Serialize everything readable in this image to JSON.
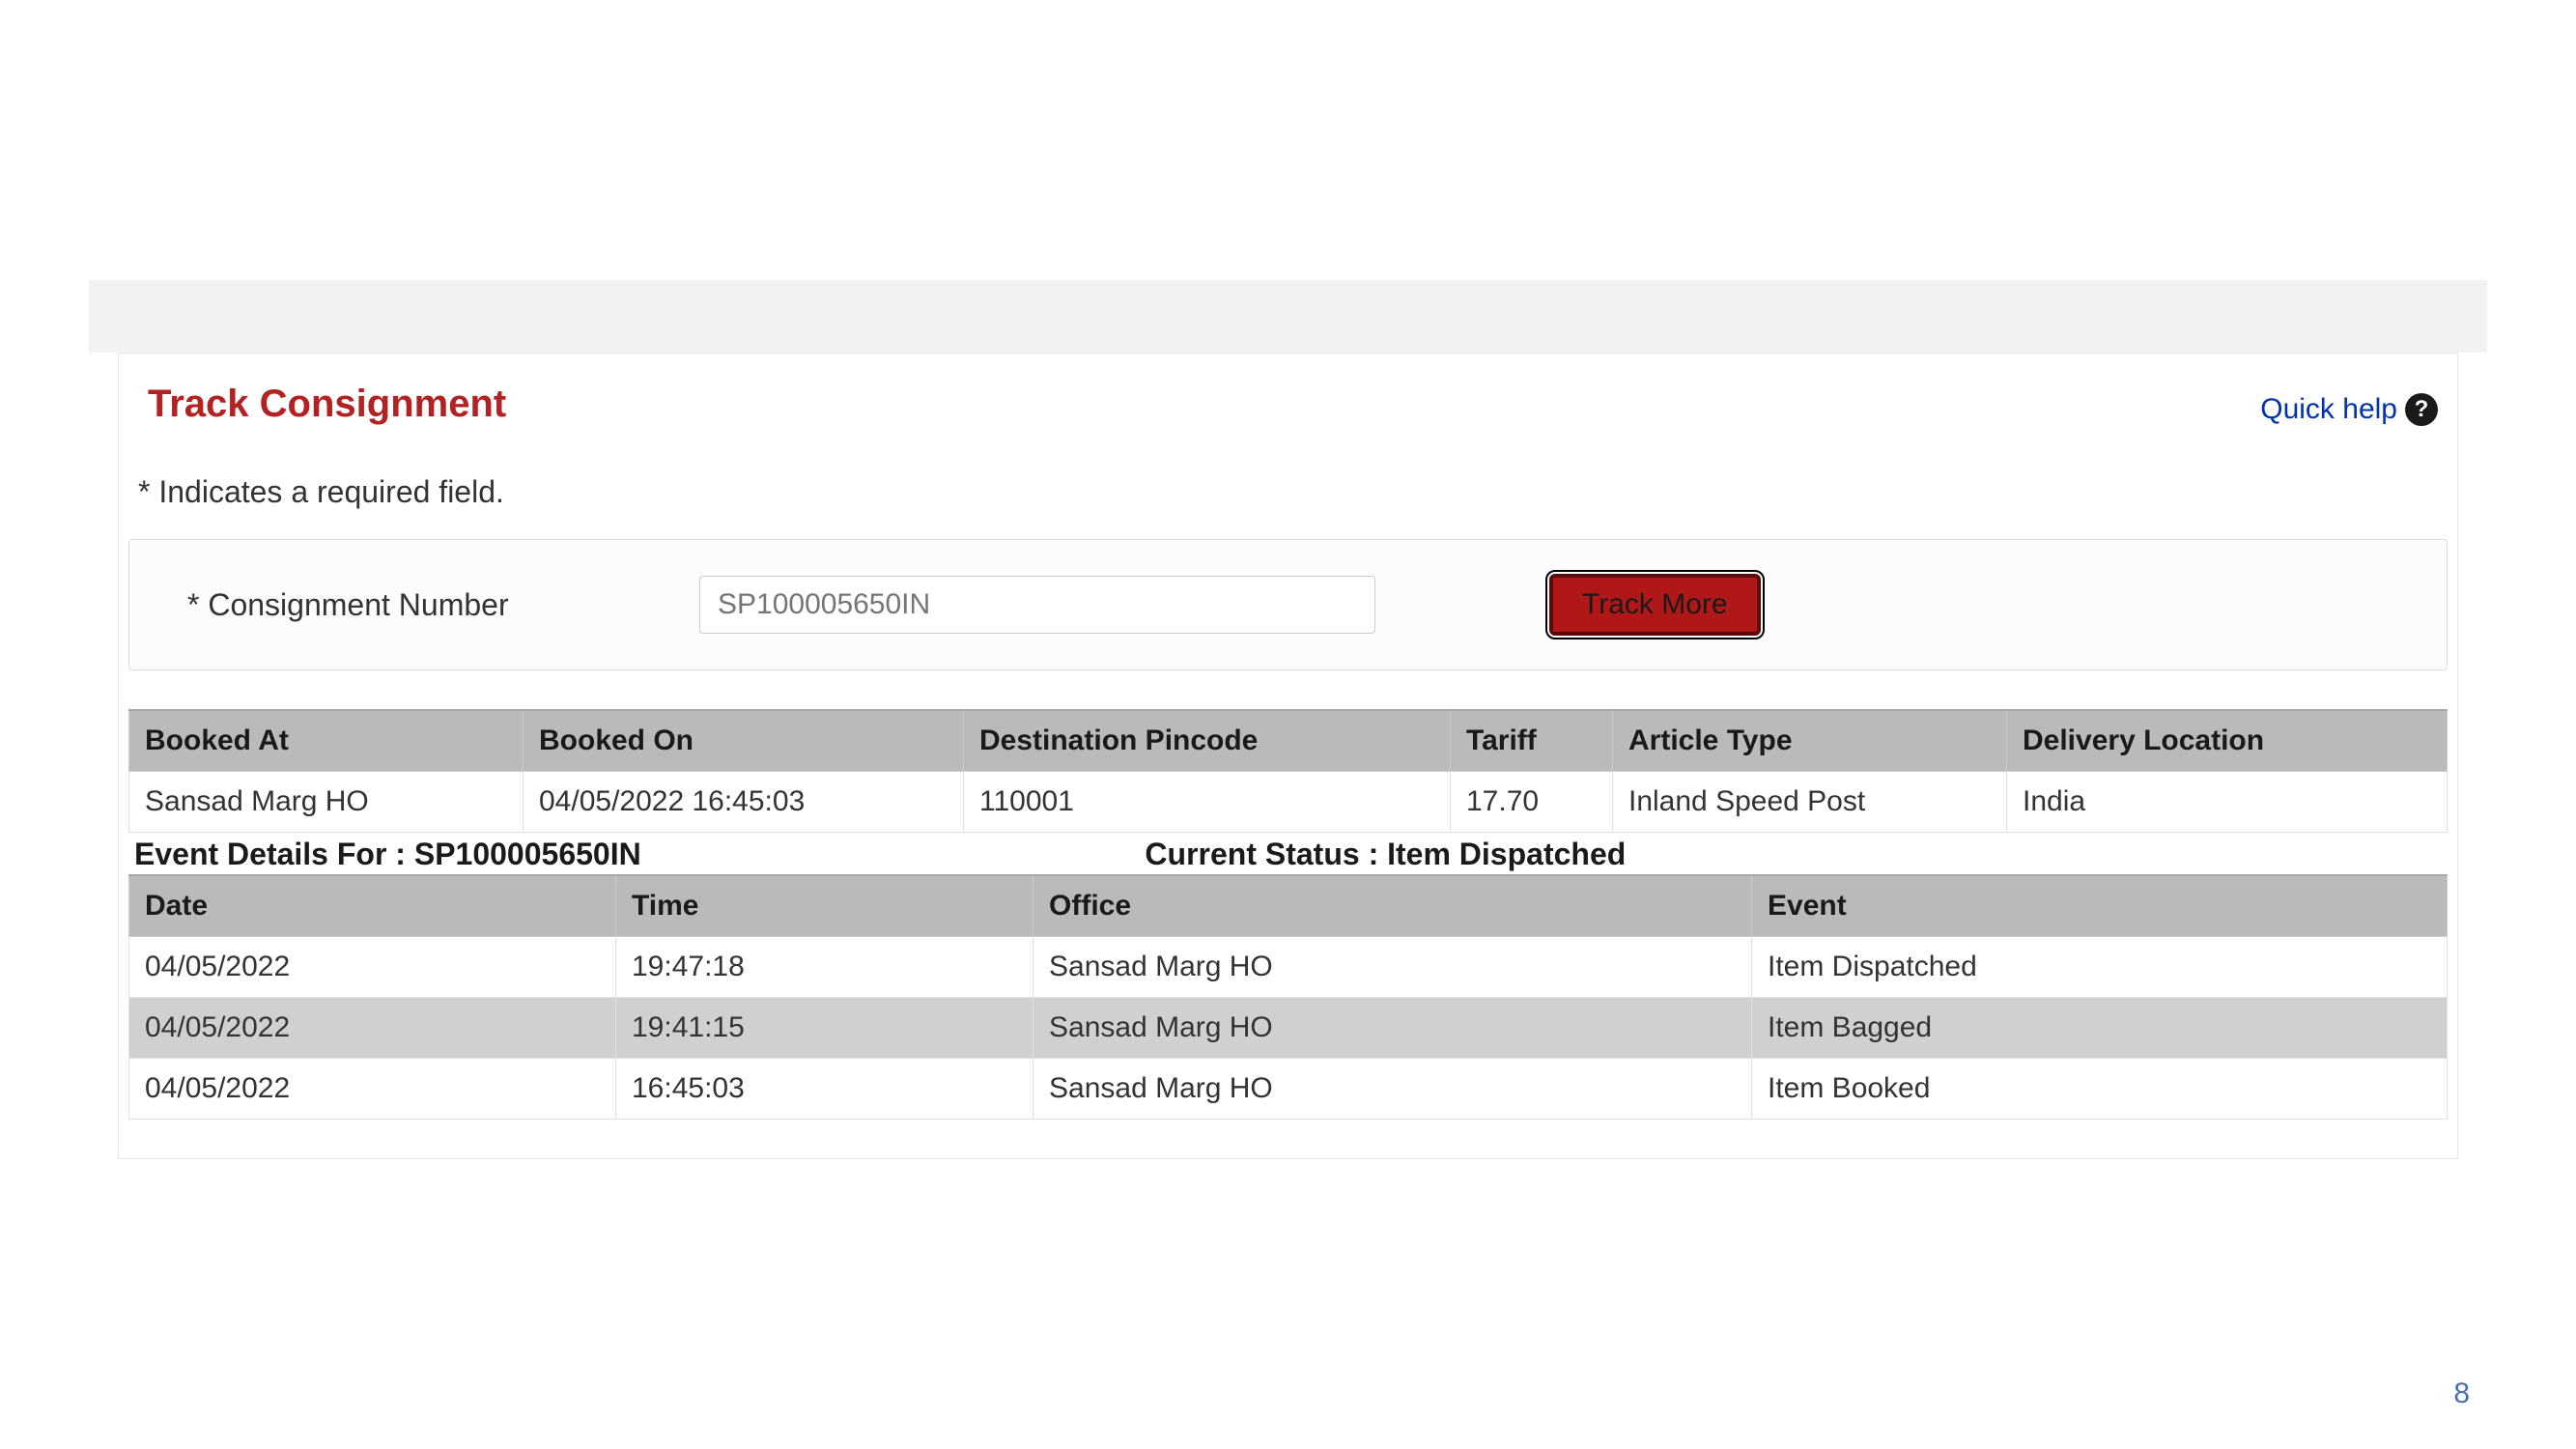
{
  "header": {
    "title": "Track Consignment",
    "quick_help": "Quick help"
  },
  "required_note": "* Indicates a required field.",
  "search": {
    "field_label": "* Consignment Number",
    "placeholder": "SP100005650IN",
    "button_label": "Track More"
  },
  "booking_table": {
    "columns": [
      "Booked At",
      "Booked On",
      "Destination Pincode",
      "Tariff",
      "Article Type",
      "Delivery Location"
    ],
    "row": [
      "Sansad Marg HO",
      "04/05/2022 16:45:03",
      "110001",
      "17.70",
      "Inland Speed Post",
      "India"
    ],
    "col_widths_pct": [
      17,
      19,
      21,
      7,
      17,
      19
    ]
  },
  "status": {
    "left_label": "Event Details For : SP100005650IN",
    "right_label": "Current Status : Item Dispatched"
  },
  "events_table": {
    "columns": [
      "Date",
      "Time",
      "Office",
      "Event"
    ],
    "rows": [
      [
        "04/05/2022",
        "19:47:18",
        "Sansad Marg HO",
        "Item Dispatched"
      ],
      [
        "04/05/2022",
        "19:41:15",
        "Sansad Marg HO",
        "Item Bagged"
      ],
      [
        "04/05/2022",
        "16:45:03",
        "Sansad Marg HO",
        "Item Booked"
      ]
    ],
    "col_widths_pct": [
      21,
      18,
      31,
      30
    ]
  },
  "page_number": "8",
  "colors": {
    "title": "#b22222",
    "button_bg": "#b01818",
    "button_border": "#5a0c0c",
    "header_row_bg": "#bababa",
    "alt_row_bg": "#d0d0d0",
    "quick_help": "#0033aa",
    "page_number": "#4a6fb0"
  }
}
